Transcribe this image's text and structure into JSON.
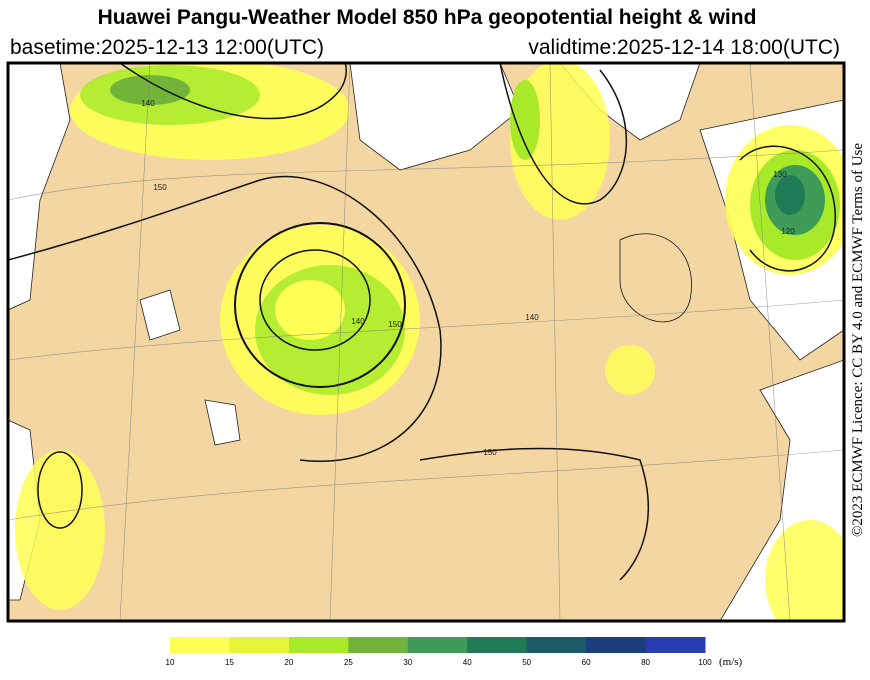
{
  "header": {
    "title": "Huawei Pangu-Weather Model 850 hPa geopotential height & wind",
    "basetime": "basetime:2025-12-13 12:00(UTC)",
    "validtime": "validtime:2025-12-14 18:00(UTC)"
  },
  "license": "©2023 ECMWF Licence: CC BY 4.0 and ECMWF Terms of Use",
  "map": {
    "contour_labels": [
      "150",
      "140",
      "120",
      "140",
      "150",
      "150",
      "140",
      "130"
    ]
  },
  "colorbar": {
    "ticks": [
      10,
      15,
      20,
      25,
      30,
      40,
      50,
      60,
      80,
      100
    ],
    "colors": [
      "#ffff55",
      "#e4f53a",
      "#a8ea2a",
      "#72b43a",
      "#3f9c58",
      "#207a56",
      "#1b5c68",
      "#1c3e7e",
      "#2a3db0"
    ],
    "unit": "(m/s)"
  }
}
